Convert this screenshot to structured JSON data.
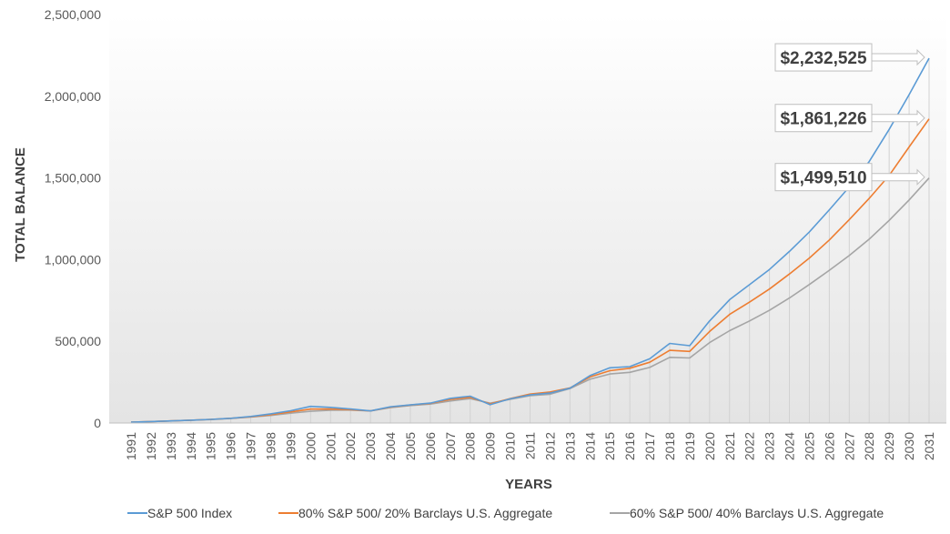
{
  "chart_data": {
    "type": "line",
    "title": "",
    "xlabel": "YEARS",
    "ylabel": "TOTAL BALANCE",
    "ylim": [
      0,
      2500000
    ],
    "yticks": [
      0,
      500000,
      1000000,
      1500000,
      2000000,
      2500000
    ],
    "ytick_labels": [
      "0",
      "500,000",
      "1,000,000",
      "1,500,000",
      "2,000,000",
      "2,500,000"
    ],
    "x": [
      "1991",
      "1992",
      "1993",
      "1994",
      "1995",
      "1996",
      "1997",
      "1998",
      "1999",
      "2000",
      "2001",
      "2002",
      "2003",
      "2004",
      "2005",
      "2006",
      "2007",
      "2008",
      "2009",
      "2010",
      "2011",
      "2012",
      "2013",
      "2014",
      "2015",
      "2016",
      "2017",
      "2018",
      "2019",
      "2020",
      "2021",
      "2022",
      "2023",
      "2024",
      "2025",
      "2026",
      "2027",
      "2028",
      "2029",
      "2030",
      "2031"
    ],
    "grid": false,
    "legend_position": "bottom",
    "series": [
      {
        "name": "S&P 500 Index",
        "color": "#5B9BD5",
        "values": [
          5000,
          9000,
          13000,
          17000,
          22000,
          29000,
          40000,
          56000,
          75000,
          102000,
          96000,
          86000,
          74000,
          99000,
          111000,
          122000,
          151000,
          164000,
          112000,
          148000,
          172000,
          183000,
          213000,
          290000,
          338000,
          345000,
          393000,
          487000,
          473000,
          625000,
          755000,
          847000,
          940000,
          1050000,
          1170000,
          1305000,
          1445000,
          1600000,
          1797000,
          2010000,
          2232525
        ]
      },
      {
        "name": "80% S&P 500/ 20% Barclays U.S. Aggregate",
        "color": "#ED7D31",
        "values": [
          5000,
          9000,
          13000,
          17000,
          22000,
          29000,
          38000,
          51000,
          68000,
          85000,
          86000,
          82000,
          74000,
          97000,
          110000,
          120000,
          144000,
          157000,
          117000,
          150000,
          177000,
          190000,
          215000,
          282000,
          320000,
          335000,
          372000,
          445000,
          438000,
          560000,
          665000,
          740000,
          820000,
          912000,
          1010000,
          1120000,
          1245000,
          1375000,
          1515000,
          1690000,
          1861226
        ]
      },
      {
        "name": "60% S&P 500/ 40% Barclays U.S. Aggregate",
        "color": "#A5A5A5",
        "values": [
          5000,
          9000,
          13000,
          17000,
          21000,
          28000,
          36000,
          46000,
          60000,
          72000,
          78000,
          79000,
          74000,
          94000,
          107000,
          116000,
          135000,
          149000,
          122000,
          145000,
          167000,
          176000,
          211000,
          268000,
          300000,
          310000,
          340000,
          402000,
          398000,
          492000,
          565000,
          625000,
          690000,
          765000,
          848000,
          935000,
          1025000,
          1125000,
          1240000,
          1365000,
          1499510
        ]
      }
    ],
    "annotations": [
      {
        "series": 0,
        "text": "$2,232,525"
      },
      {
        "series": 1,
        "text": "$1,861,226"
      },
      {
        "series": 2,
        "text": "$1,499,510"
      }
    ]
  }
}
